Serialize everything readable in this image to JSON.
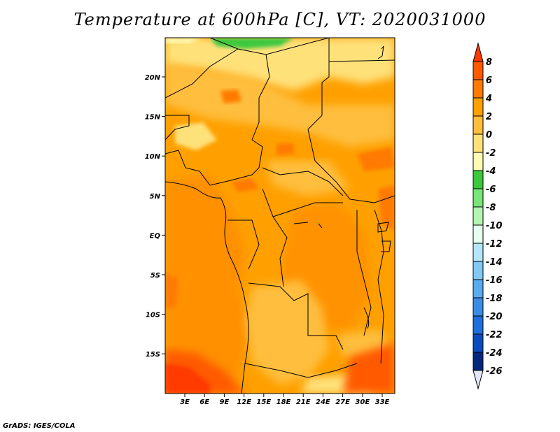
{
  "title": "Temperature at 600hPa [C], VT: 2020031000",
  "credit": "GrADS: IGES/COLA",
  "map": {
    "lat_labels": [
      "20N",
      "15N",
      "10N",
      "5N",
      "EQ",
      "5S",
      "10S",
      "15S"
    ],
    "lon_labels": [
      "3E",
      "6E",
      "9E",
      "12E",
      "15E",
      "18E",
      "21E",
      "24E",
      "27E",
      "30E",
      "33E"
    ]
  },
  "colorbar": {
    "labels": [
      "8",
      "6",
      "4",
      "2",
      "0",
      "-2",
      "-4",
      "-6",
      "-8",
      "-10",
      "-12",
      "-14",
      "-16",
      "-18",
      "-20",
      "-22",
      "-24",
      "-26"
    ],
    "colors": [
      "#ff3a00",
      "#ff5a00",
      "#ff7a00",
      "#ffa000",
      "#ffbe3c",
      "#ffe17a",
      "#fffab4",
      "#3cc83c",
      "#78e678",
      "#b4f5b4",
      "#e6fff0",
      "#b4e6fa",
      "#82c8f5",
      "#5aaaf0",
      "#3c8ce6",
      "#1e6edc",
      "#0a4bbe",
      "#05287d",
      "#0a0a50"
    ]
  }
}
